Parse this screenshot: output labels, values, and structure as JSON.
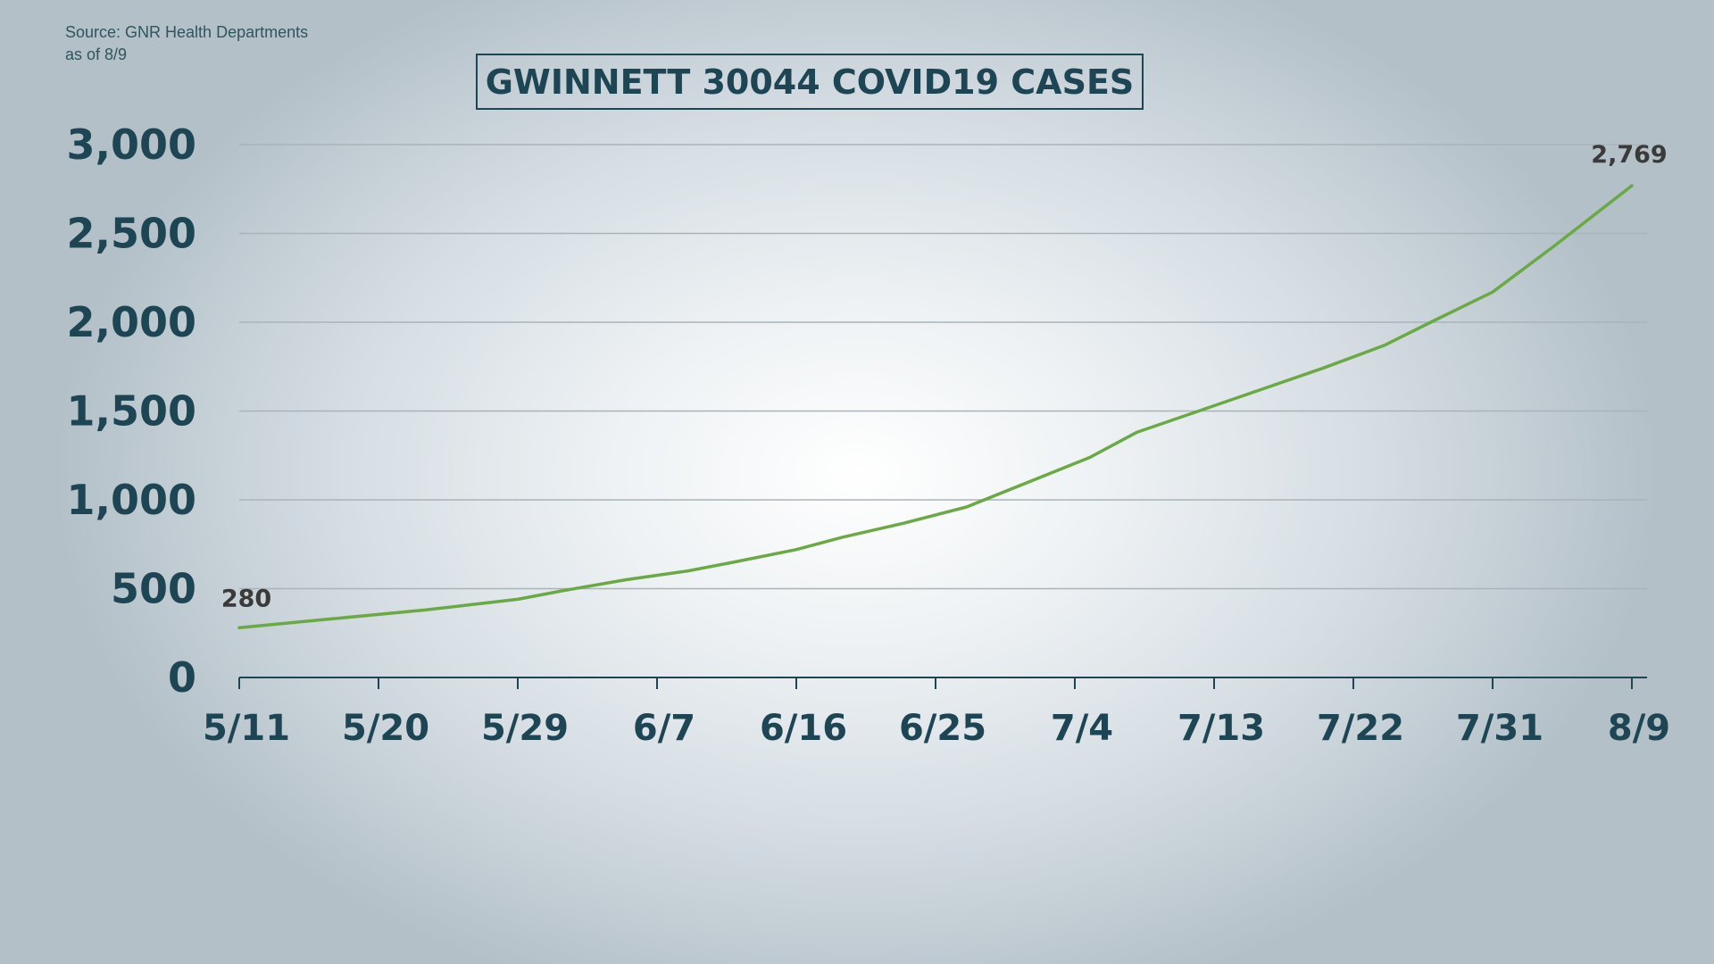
{
  "source": {
    "line1": "Source: GNR Health Departments",
    "line2": "as of 8/9"
  },
  "colors": {
    "line": "#6aa944",
    "text": "#1d4553",
    "grid": "#a9b3b8",
    "label": "#3a3a3a"
  },
  "chart_data": {
    "type": "line",
    "title": "GWINNETT 30044 COVID19 CASES",
    "xlabel": "",
    "ylabel": "",
    "ylim": [
      0,
      3000
    ],
    "yticks": [
      {
        "value": 0,
        "label": "0"
      },
      {
        "value": 500,
        "label": "500"
      },
      {
        "value": 1000,
        "label": "1,000"
      },
      {
        "value": 1500,
        "label": "1,500"
      },
      {
        "value": 2000,
        "label": "2,000"
      },
      {
        "value": 2500,
        "label": "2,500"
      },
      {
        "value": 3000,
        "label": "3,000"
      }
    ],
    "xticks": [
      "5/11",
      "5/20",
      "5/29",
      "6/7",
      "6/16",
      "6/25",
      "7/4",
      "7/13",
      "7/22",
      "7/31",
      "8/9"
    ],
    "grid": "horizontal",
    "legend": "none",
    "series": [
      {
        "x": [
          "5/11",
          "5/17",
          "5/23",
          "5/26",
          "5/29",
          "6/1",
          "6/5",
          "6/9",
          "6/12",
          "6/16",
          "6/19",
          "6/23",
          "6/27",
          "7/1",
          "7/5",
          "7/8",
          "7/12",
          "7/16",
          "7/20",
          "7/24",
          "7/27",
          "7/31",
          "8/4",
          "8/9"
        ],
        "values": [
          280,
          330,
          380,
          410,
          440,
          490,
          550,
          600,
          650,
          720,
          790,
          870,
          960,
          1100,
          1240,
          1380,
          1500,
          1620,
          1740,
          1870,
          2000,
          2170,
          2430,
          2769
        ]
      }
    ],
    "data_labels": [
      {
        "x": "5/11",
        "value": 280,
        "text": "280"
      },
      {
        "x": "8/9",
        "value": 2769,
        "text": "2,769"
      }
    ]
  }
}
